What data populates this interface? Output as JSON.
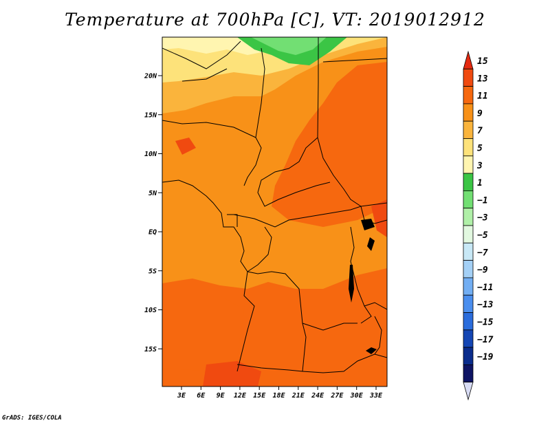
{
  "title": "Temperature at 700hPa [C], VT: 2019012912",
  "credit": "GrADS: IGES/COLA",
  "map": {
    "lat_ticks": [
      "20N",
      "15N",
      "10N",
      "5N",
      "EQ",
      "5S",
      "10S",
      "15S"
    ],
    "lon_ticks": [
      "3E",
      "6E",
      "9E",
      "12E",
      "15E",
      "18E",
      "21E",
      "24E",
      "27E",
      "30E",
      "33E"
    ]
  },
  "colorbar": {
    "labels": [
      "15",
      "13",
      "11",
      "9",
      "7",
      "5",
      "3",
      "1",
      "−1",
      "−3",
      "−5",
      "−7",
      "−9",
      "−11",
      "−13",
      "−15",
      "−17",
      "−19"
    ],
    "colors": [
      "#e52a10",
      "#f04a10",
      "#f6680f",
      "#f89118",
      "#fab43c",
      "#fde27a",
      "#fff5b0",
      "#3bc545",
      "#72df73",
      "#b0f0a8",
      "#e2f8e0",
      "#c8e8f6",
      "#a4d0f6",
      "#72aef3",
      "#4a8eee",
      "#2a6cdc",
      "#1446b4",
      "#0a2c8c",
      "#0e1464",
      "#d8dcf4"
    ]
  }
}
